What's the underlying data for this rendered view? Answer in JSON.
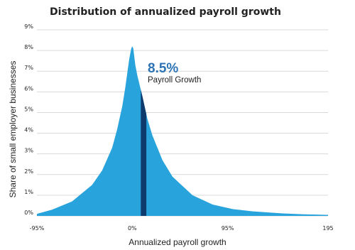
{
  "chart_data": {
    "type": "area",
    "title": "Distribution of annualized payroll growth",
    "xlabel": "Annualized payroll growth",
    "ylabel": "Share of small employer businesses",
    "x_ticks": [
      "-95%",
      "0%",
      "95%",
      "195"
    ],
    "x_tick_values": [
      -95,
      0,
      95,
      195
    ],
    "y_ticks": [
      "0%",
      "1%",
      "2%",
      "3%",
      "4%",
      "5%",
      "6%",
      "7%",
      "8%",
      "9%"
    ],
    "xlim": [
      -95,
      195
    ],
    "ylim": [
      0,
      9
    ],
    "grid": "horizontal",
    "series": [
      {
        "x": [
          -95,
          -80,
          -60,
          -40,
          -30,
          -20,
          -15,
          -10,
          -7,
          -5,
          -3,
          -1,
          0,
          1,
          2,
          3,
          5,
          8,
          10,
          15,
          20,
          30,
          40,
          60,
          80,
          100,
          120,
          150,
          170,
          195
        ],
        "y": [
          0.1,
          0.3,
          0.7,
          1.5,
          2.2,
          3.3,
          4.2,
          5.3,
          6.2,
          6.9,
          7.6,
          8.1,
          8.2,
          8.1,
          7.7,
          7.3,
          6.8,
          6.2,
          5.8,
          4.7,
          3.9,
          2.7,
          1.9,
          1.0,
          0.55,
          0.33,
          0.22,
          0.12,
          0.08,
          0.05
        ]
      }
    ],
    "highlight": {
      "x_range": [
        8.5,
        14
      ],
      "value_label": "8.5%",
      "text_label": "Payroll Growth"
    },
    "colors": {
      "fill": "#29a3dc",
      "highlight": "#0f3a6e",
      "grid": "#d9d9d9"
    }
  }
}
